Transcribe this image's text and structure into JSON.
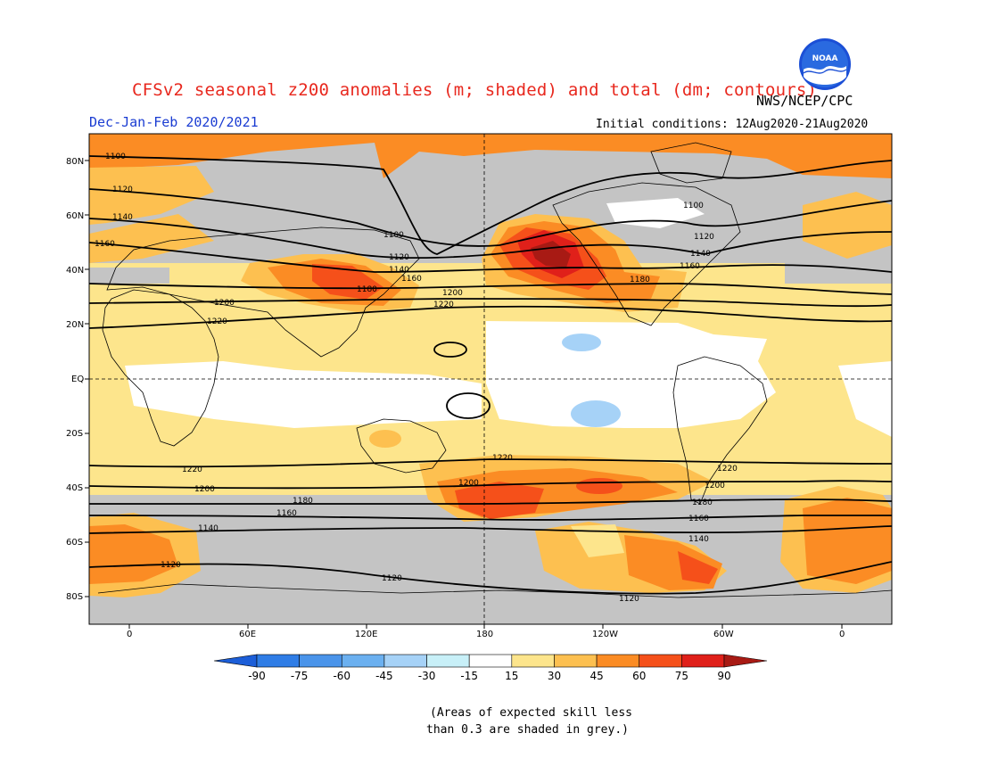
{
  "title": "CFSv2 seasonal z200 anomalies (m; shaded) and total (dm; contours)",
  "subtitle": "Dec-Jan-Feb 2020/2021",
  "agency": "NWS/NCEP/CPC",
  "initial_conditions": "Initial conditions: 12Aug2020-21Aug2020",
  "logo_text": "NOAA",
  "footnote": [
    "(Areas of expected skill less",
    "than 0.3 are shaded in grey.)"
  ],
  "lat_labels": [
    "80N",
    "60N",
    "40N",
    "20N",
    "EQ",
    "20S",
    "40S",
    "60S",
    "80S"
  ],
  "lon_labels": [
    "0",
    "60E",
    "120E",
    "180",
    "120W",
    "60W",
    "0"
  ],
  "colorbar": {
    "labels": [
      "-90",
      "-75",
      "-60",
      "-45",
      "-30",
      "-15",
      "15",
      "30",
      "45",
      "60",
      "75",
      "90"
    ],
    "colors": [
      "#1c5ed8",
      "#2f7de6",
      "#4a94ea",
      "#6bb0f0",
      "#a6d2f7",
      "#c8f0f8",
      "#ffffff",
      "#fde58c",
      "#fdc050",
      "#fb8c24",
      "#f5501a",
      "#e0201a",
      "#a81a14"
    ]
  },
  "map_colors": {
    "grey": "#c4c4c4",
    "pale_yellow": "#fde58c",
    "yellow_orange": "#fdc050",
    "orange": "#fb8c24",
    "red_orange": "#f5501a",
    "red": "#e0201a",
    "dark_red": "#a81a14",
    "light_blue": "#a6d2f7",
    "white": "#ffffff"
  },
  "contour_labels": {
    "nh": [
      "1100",
      "1120",
      "1140",
      "1160",
      "1100",
      "1120",
      "1140",
      "1160",
      "1180",
      "1200",
      "1220",
      "1100",
      "1120",
      "1140",
      "1160",
      "1180",
      "1200",
      "1220"
    ],
    "sh": [
      "1220",
      "1200",
      "1180",
      "1160",
      "1140",
      "1120",
      "1220",
      "1200",
      "1120",
      "1220",
      "1200",
      "1180",
      "1160",
      "1140",
      "1120"
    ]
  }
}
